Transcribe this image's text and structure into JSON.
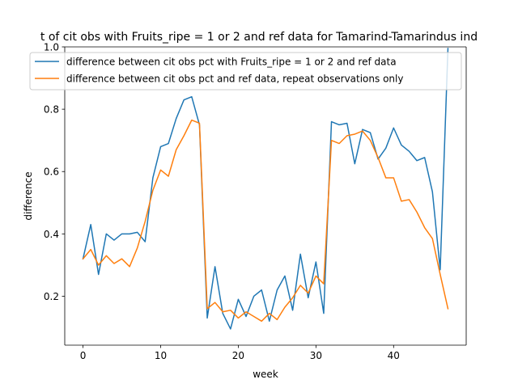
{
  "chart_data": {
    "type": "line",
    "title": "t of cit obs with Fruits_ripe = 1 or 2 and ref data for Tamarind-Tamarindus ind",
    "xlabel": "week",
    "ylabel": "difference",
    "xlim": [
      -2.35,
      49.35
    ],
    "ylim": [
      0.043,
      1.0
    ],
    "xticks": [
      0,
      10,
      20,
      30,
      40
    ],
    "yticks": [
      0.2,
      0.4,
      0.6,
      0.8,
      1.0
    ],
    "ytick_labels": [
      "0.2",
      "0.4",
      "0.6",
      "0.8",
      "1.0"
    ],
    "grid": false,
    "legend_position": "upper center",
    "x": [
      0,
      1,
      2,
      3,
      4,
      5,
      6,
      7,
      8,
      9,
      10,
      11,
      12,
      13,
      14,
      15,
      16,
      17,
      18,
      19,
      20,
      21,
      22,
      23,
      24,
      25,
      26,
      27,
      28,
      29,
      30,
      31,
      32,
      33,
      34,
      35,
      36,
      37,
      38,
      39,
      40,
      41,
      42,
      43,
      44,
      45,
      46,
      47
    ],
    "series": [
      {
        "name": "difference between cit obs pct with Fruits_ripe = 1 or 2 and ref data",
        "color": "#1f77b4",
        "values": [
          0.32,
          0.43,
          0.27,
          0.4,
          0.38,
          0.4,
          0.4,
          0.405,
          0.375,
          0.58,
          0.68,
          0.69,
          0.77,
          0.83,
          0.84,
          0.75,
          0.13,
          0.295,
          0.145,
          0.095,
          0.19,
          0.135,
          0.2,
          0.22,
          0.12,
          0.22,
          0.265,
          0.155,
          0.335,
          0.195,
          0.31,
          0.145,
          0.76,
          0.75,
          0.755,
          0.625,
          0.735,
          0.725,
          0.64,
          0.675,
          0.74,
          0.685,
          0.665,
          0.635,
          0.645,
          0.535,
          0.285,
          0.995
        ]
      },
      {
        "name": "difference between cit obs pct and ref data, repeat observations only",
        "color": "#ff7f0e",
        "values": [
          0.32,
          0.35,
          0.3,
          0.33,
          0.305,
          0.32,
          0.295,
          0.355,
          0.44,
          0.54,
          0.605,
          0.585,
          0.67,
          0.715,
          0.765,
          0.755,
          0.16,
          0.18,
          0.15,
          0.155,
          0.13,
          0.15,
          0.135,
          0.12,
          0.145,
          0.125,
          0.165,
          0.195,
          0.235,
          0.21,
          0.265,
          0.24,
          0.7,
          0.69,
          0.715,
          0.72,
          0.73,
          0.7,
          0.645,
          0.58,
          0.58,
          0.505,
          0.51,
          0.47,
          0.42,
          0.385,
          0.27,
          0.16
        ]
      }
    ]
  }
}
